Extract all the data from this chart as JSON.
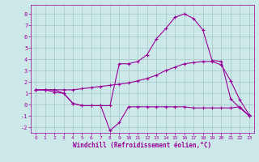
{
  "bg_color": "#cce8e8",
  "grid_color": "#aacccc",
  "line_color": "#990099",
  "x": [
    0,
    1,
    2,
    3,
    4,
    5,
    6,
    7,
    8,
    9,
    10,
    11,
    12,
    13,
    14,
    15,
    16,
    17,
    18,
    19,
    20,
    21,
    22,
    23
  ],
  "line1": [
    1.3,
    1.3,
    1.1,
    1.0,
    0.1,
    -0.1,
    -0.1,
    -0.1,
    -2.3,
    -1.6,
    -0.2,
    -0.2,
    -0.2,
    -0.2,
    -0.2,
    -0.2,
    -0.2,
    -0.3,
    -0.3,
    -0.3,
    -0.3,
    -0.3,
    -0.2,
    -1.0
  ],
  "line2": [
    1.3,
    1.3,
    1.3,
    1.3,
    1.3,
    1.4,
    1.5,
    1.6,
    1.7,
    1.8,
    1.9,
    2.1,
    2.3,
    2.6,
    3.0,
    3.3,
    3.6,
    3.7,
    3.8,
    3.8,
    3.5,
    2.1,
    0.4,
    -0.9
  ],
  "line3": [
    1.3,
    1.3,
    1.3,
    1.0,
    0.1,
    -0.1,
    -0.1,
    -0.1,
    -0.1,
    3.6,
    3.6,
    3.8,
    4.4,
    5.8,
    6.7,
    7.7,
    8.0,
    7.6,
    6.6,
    3.9,
    3.8,
    0.5,
    -0.3,
    -1.0
  ],
  "ylim": [
    -2.5,
    8.8
  ],
  "xlim": [
    -0.5,
    23.5
  ],
  "yticks": [
    -2,
    -1,
    0,
    1,
    2,
    3,
    4,
    5,
    6,
    7,
    8
  ],
  "xticks": [
    0,
    1,
    2,
    3,
    4,
    5,
    6,
    7,
    8,
    9,
    10,
    11,
    12,
    13,
    14,
    15,
    16,
    17,
    18,
    19,
    20,
    21,
    22,
    23
  ],
  "xlabel": "Windchill (Refroidissement éolien,°C)"
}
